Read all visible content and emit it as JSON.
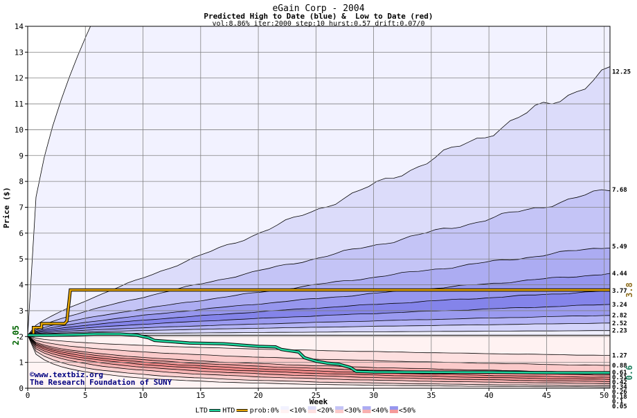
{
  "chart_data": {
    "type": "area",
    "title": "eGain Corp - 2004",
    "subtitle": "Predicted High to Date (blue) &  Low to Date (red)",
    "params": "vol:8.86% iter:2000 step:10 hurst:0.57 drift:0.07/0",
    "xlabel": "Week",
    "ylabel": "Price ($)",
    "xlim": [
      0,
      50.5
    ],
    "ylim": [
      0,
      14
    ],
    "x_ticks": [
      0,
      5,
      10,
      15,
      20,
      25,
      30,
      35,
      40,
      45,
      50
    ],
    "y_ticks": [
      0,
      1,
      2,
      3,
      4,
      5,
      6,
      7,
      8,
      9,
      10,
      11,
      12,
      13,
      14
    ],
    "grid": true,
    "start_price": 2.05,
    "start_price_label": "2.05",
    "high_band_end_values": [
      12.25,
      7.68,
      5.49,
      4.44,
      3.77,
      3.24,
      2.82,
      2.52,
      2.23
    ],
    "high_band_labels": [
      "12.25",
      "7.68",
      "5.49",
      "4.44",
      "3.77",
      "3.24",
      "2.82",
      "2.52",
      "2.23"
    ],
    "low_band_end_values": [
      1.27,
      0.88,
      0.61,
      0.51,
      0.42,
      0.34,
      0.26,
      0.18,
      0.1,
      0.05
    ],
    "low_band_labels": [
      "1.27",
      "0.88",
      "0.61",
      "0.51",
      "0.42",
      "0.34",
      "0.26",
      "0.18",
      "0.1",
      "0.05"
    ],
    "htd_current": 3.8,
    "htd_current_label": "3.8",
    "ltd_current": 0.6,
    "ltd_current_label": "0.6",
    "htd_series": {
      "name": "HTD",
      "x": [
        0,
        0.5,
        0.5,
        1.2,
        1.2,
        3.2,
        3.4,
        3.7,
        50.5
      ],
      "y": [
        2.05,
        2.05,
        2.35,
        2.35,
        2.5,
        2.5,
        2.6,
        3.8,
        3.8
      ]
    },
    "ltd_series": {
      "name": "LTD",
      "x": [
        0,
        2,
        4,
        6,
        8,
        9.5,
        10,
        10.5,
        11,
        14,
        17,
        20,
        21.5,
        22,
        23.5,
        24,
        25,
        26,
        27,
        28,
        28.5,
        30,
        35,
        40,
        45,
        50.5
      ],
      "y": [
        2.05,
        2.05,
        2.07,
        2.1,
        2.1,
        2.05,
        2.0,
        1.95,
        1.85,
        1.75,
        1.72,
        1.62,
        1.6,
        1.5,
        1.4,
        1.18,
        1.05,
        0.97,
        0.93,
        0.8,
        0.65,
        0.63,
        0.62,
        0.62,
        0.6,
        0.6
      ]
    },
    "legend": {
      "placement": "bottom",
      "items": [
        "LTD",
        "HTD",
        "prob:0%",
        "<10%",
        "<20%",
        "<30%",
        "<40%",
        "<50%"
      ]
    },
    "watermark_lines": [
      "©www.textbiz.org",
      "The Research Foundation of SUNY"
    ],
    "colors": {
      "high_bands": [
        "#f2f2ff",
        "#dcdcfa",
        "#c4c4f6",
        "#acacf2",
        "#9696ee",
        "#8484ea",
        "#9a9af0",
        "#b4b4f6",
        "#d4d4fa"
      ],
      "low_bands": [
        "#fff2f2",
        "#fde0e0",
        "#fbcaca",
        "#f8b0b0",
        "#f59a9a",
        "#f38a8a",
        "#f59c9c",
        "#f8b4b4",
        "#fbd0d0",
        "#fde8e8"
      ],
      "htd": "#e8a800",
      "ltd": "#20d8a0",
      "start_label": "#006400",
      "htd_label": "#907020",
      "ltd_label": "#208060",
      "watermark": "#000080"
    }
  }
}
